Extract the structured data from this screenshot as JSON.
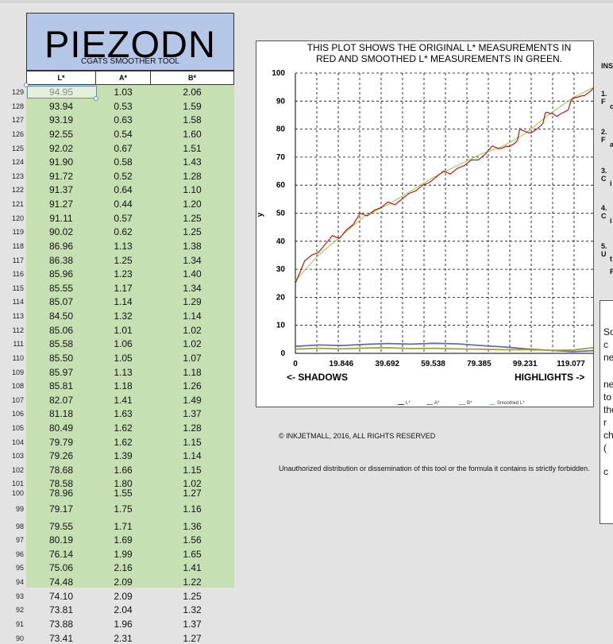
{
  "app": {
    "title": "PIEZODN",
    "subtitle": "CGATS SMOOTHER TOOL"
  },
  "table": {
    "columns": [
      "L*",
      "A*",
      "B*"
    ],
    "rows": [
      {
        "num": "129",
        "L": "94.95",
        "A": "1.03",
        "B": "2.06"
      },
      {
        "num": "128",
        "L": "93.94",
        "A": "0.53",
        "B": "1.59"
      },
      {
        "num": "127",
        "L": "93.19",
        "A": "0.63",
        "B": "1.58"
      },
      {
        "num": "126",
        "L": "92.55",
        "A": "0.54",
        "B": "1.60"
      },
      {
        "num": "125",
        "L": "92.02",
        "A": "0.67",
        "B": "1.51"
      },
      {
        "num": "124",
        "L": "91.90",
        "A": "0.58",
        "B": "1.43"
      },
      {
        "num": "123",
        "L": "91.72",
        "A": "0.52",
        "B": "1.28"
      },
      {
        "num": "122",
        "L": "91.37",
        "A": "0.64",
        "B": "1.10"
      },
      {
        "num": "121",
        "L": "91.27",
        "A": "0.44",
        "B": "1.20"
      },
      {
        "num": "120",
        "L": "91.11",
        "A": "0.57",
        "B": "1.25"
      },
      {
        "num": "119",
        "L": "90.02",
        "A": "0.62",
        "B": "1.25"
      },
      {
        "num": "118",
        "L": "86.96",
        "A": "1.13",
        "B": "1.38"
      },
      {
        "num": "117",
        "L": "86.38",
        "A": "1.25",
        "B": "1.34"
      },
      {
        "num": "116",
        "L": "85.96",
        "A": "1.23",
        "B": "1.40"
      },
      {
        "num": "115",
        "L": "85.55",
        "A": "1.17",
        "B": "1.34"
      },
      {
        "num": "114",
        "L": "85.07",
        "A": "1.14",
        "B": "1.29"
      },
      {
        "num": "113",
        "L": "84.50",
        "A": "1.32",
        "B": "1.14"
      },
      {
        "num": "112",
        "L": "85.06",
        "A": "1.01",
        "B": "1.02"
      },
      {
        "num": "111",
        "L": "85.58",
        "A": "1.06",
        "B": "1.02"
      },
      {
        "num": "110",
        "L": "85.50",
        "A": "1.05",
        "B": "1.07"
      },
      {
        "num": "109",
        "L": "85.97",
        "A": "1.13",
        "B": "1.18"
      },
      {
        "num": "108",
        "L": "85.81",
        "A": "1.18",
        "B": "1.26"
      },
      {
        "num": "107",
        "L": "82.07",
        "A": "1.41",
        "B": "1.49"
      },
      {
        "num": "106",
        "L": "81.18",
        "A": "1.63",
        "B": "1.37"
      },
      {
        "num": "105",
        "L": "80.49",
        "A": "1.62",
        "B": "1.28"
      },
      {
        "num": "104",
        "L": "79.79",
        "A": "1.62",
        "B": "1.15"
      },
      {
        "num": "103",
        "L": "79.26",
        "A": "1.39",
        "B": "1.14"
      },
      {
        "num": "102",
        "L": "78.68",
        "A": "1.66",
        "B": "1.15"
      },
      {
        "num": "101",
        "L": "78.58",
        "A": "1.80",
        "B": "1.02"
      },
      {
        "num": "100",
        "L": "78.96",
        "A": "1.55",
        "B": "1.27"
      },
      {
        "num": "99",
        "L": "79.17",
        "A": "1.75",
        "B": "1.16"
      },
      {
        "num": "98",
        "L": "79.55",
        "A": "1.71",
        "B": "1.36"
      },
      {
        "num": "97",
        "L": "80.19",
        "A": "1.69",
        "B": "1.56"
      },
      {
        "num": "96",
        "L": "76.14",
        "A": "1.99",
        "B": "1.65"
      },
      {
        "num": "95",
        "L": "75.06",
        "A": "2.16",
        "B": "1.41"
      },
      {
        "num": "94",
        "L": "74.48",
        "A": "2.09",
        "B": "1.22"
      },
      {
        "num": "93",
        "L": "74.10",
        "A": "2.09",
        "B": "1.25"
      },
      {
        "num": "92",
        "L": "73.81",
        "A": "2.04",
        "B": "1.32"
      },
      {
        "num": "91",
        "L": "73.88",
        "A": "1.96",
        "B": "1.37"
      },
      {
        "num": "90",
        "L": "73.41",
        "A": "2.31",
        "B": "1.27"
      }
    ]
  },
  "chart_data": {
    "type": "line",
    "title_lines": [
      "THIS PLOT SHOWS THE ORIGINAL L* MEASUREMENTS IN",
      "RED AND SMOOTHED L* MEASUREMENTS IN GREEN."
    ],
    "ylabel": "y",
    "ylim": [
      0,
      100
    ],
    "yticks": [
      "0",
      "10",
      "20",
      "30",
      "40",
      "50",
      "60",
      "70",
      "80",
      "90",
      "100"
    ],
    "xlim": [
      0,
      129
    ],
    "xticks": [
      {
        "label": "0",
        "value": 0
      },
      {
        "label": "19.846",
        "value": 19.846
      },
      {
        "label": "39.692",
        "value": 39.692
      },
      {
        "label": "59.538",
        "value": 59.538
      },
      {
        "label": "79.385",
        "value": 79.385
      },
      {
        "label": "99.231",
        "value": 99.231
      },
      {
        "label": "119.077",
        "value": 119.077
      }
    ],
    "grid": true,
    "shadows_label": "<- SHADOWS",
    "highlights_label": "HIGHLIGHTS ->",
    "legend": [
      "L*",
      "A*",
      "B*",
      "Smoothed L*"
    ],
    "colors": {
      "L": "#c00000",
      "A": "#6a6aa8",
      "B": "#a0a040",
      "smoothed": "#92d050"
    },
    "series": [
      {
        "name": "L*",
        "color": "#c00000",
        "x": [
          0,
          4,
          7,
          10,
          13,
          16,
          19,
          22,
          25,
          28,
          31,
          34,
          37,
          40,
          43,
          46,
          49,
          52,
          55,
          58,
          61,
          64,
          67,
          70,
          73,
          76,
          79,
          82,
          85,
          88,
          90,
          91,
          92,
          93,
          94,
          95,
          96,
          97,
          98,
          99,
          100,
          101,
          102,
          103,
          104,
          105,
          106,
          107,
          108,
          109,
          110,
          111,
          112,
          113,
          114,
          115,
          116,
          117,
          118,
          119,
          120,
          121,
          122,
          123,
          124,
          125,
          126,
          127,
          128,
          129
        ],
        "y": [
          25,
          33,
          35,
          36,
          39,
          42,
          41,
          44,
          46,
          50,
          49,
          51,
          52,
          54,
          53,
          55,
          57,
          58,
          60,
          61,
          63,
          65,
          64,
          66,
          67,
          69,
          69,
          71,
          74,
          73,
          73.4,
          73.9,
          73.8,
          74.1,
          74.5,
          75.1,
          76.1,
          80.2,
          79.6,
          79.2,
          79.0,
          78.6,
          78.7,
          79.3,
          79.8,
          80.5,
          81.2,
          82.1,
          85.8,
          86.0,
          85.5,
          85.6,
          85.1,
          84.5,
          85.1,
          85.6,
          86.0,
          86.4,
          87.0,
          90.0,
          91.1,
          91.3,
          91.4,
          91.7,
          91.9,
          92.0,
          92.6,
          93.2,
          93.9,
          95.0
        ]
      },
      {
        "name": "A*",
        "color": "#6a6aa8",
        "x": [
          0,
          10,
          20,
          30,
          40,
          50,
          60,
          70,
          80,
          90,
          100,
          110,
          120,
          129
        ],
        "y": [
          2.5,
          3.0,
          2.8,
          3.2,
          3.5,
          3.3,
          3.6,
          3.4,
          2.8,
          2.3,
          1.6,
          1.1,
          0.6,
          1.0
        ]
      },
      {
        "name": "B*",
        "color": "#a0a040",
        "x": [
          0,
          10,
          20,
          30,
          40,
          50,
          60,
          70,
          80,
          90,
          100,
          110,
          120,
          129
        ],
        "y": [
          1.5,
          1.8,
          1.6,
          1.9,
          2.0,
          1.7,
          1.8,
          1.6,
          1.5,
          1.3,
          1.3,
          1.1,
          1.2,
          2.1
        ]
      },
      {
        "name": "Smoothed L*",
        "color": "#92d050",
        "x": [
          0,
          10,
          20,
          30,
          40,
          50,
          60,
          70,
          80,
          90,
          100,
          110,
          120,
          129
        ],
        "y": [
          26,
          35,
          42,
          49,
          53,
          58,
          63,
          67,
          71,
          74,
          78.8,
          85.5,
          91.2,
          95.0
        ]
      }
    ]
  },
  "footer": {
    "copyright": "© INKJETMALL, 2016, ALL RIGHTS RESERVED",
    "warning": "Unauthorized distribution or dissemination of this tool or the formula it contains is strictly forbidden."
  },
  "instructions": {
    "heading": "INS",
    "items": [
      {
        "num": "1. F",
        "cont": "c"
      },
      {
        "num": "2. F",
        "cont": "a"
      },
      {
        "num": "3. C",
        "cont": "i"
      },
      {
        "num": "4. C",
        "cont": "i"
      },
      {
        "num": "5. U",
        "cont": "t",
        "cont2": "F"
      }
    ]
  },
  "side_box": {
    "lines": [
      "So",
      "c",
      "ne",
      "ne",
      "to",
      "the",
      "r",
      "ch",
      "(",
      "c"
    ]
  }
}
